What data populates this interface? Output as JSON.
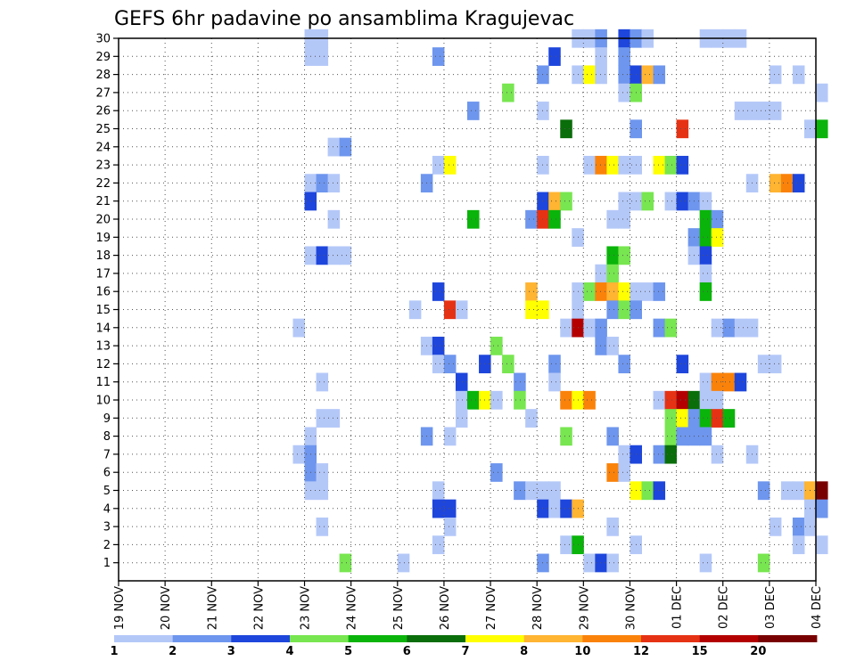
{
  "chart_data": {
    "type": "heatmap",
    "title": "GEFS 6hr padavine po ansamblima Kragujevac",
    "x_tick_labels": [
      "19 NOV",
      "20 NOV",
      "21 NOV",
      "22 NOV",
      "23 NOV",
      "24 NOV",
      "25 NOV",
      "26 NOV",
      "27 NOV",
      "28 NOV",
      "29 NOV",
      "30 NOV",
      "01 DEC",
      "02 DEC",
      "03 DEC",
      "04 DEC"
    ],
    "y_tick_labels": [
      "1",
      "2",
      "3",
      "4",
      "5",
      "6",
      "7",
      "8",
      "9",
      "10",
      "11",
      "12",
      "13",
      "14",
      "15",
      "16",
      "17",
      "18",
      "19",
      "20",
      "21",
      "22",
      "23",
      "24",
      "25",
      "26",
      "27",
      "28",
      "29",
      "30"
    ],
    "x_range": [
      "19 NOV",
      "04 DEC"
    ],
    "y_range": [
      0,
      30
    ],
    "time_step_hours": 6,
    "grid": "dotted",
    "legend": {
      "position": "bottom",
      "boundaries": [
        "1",
        "2",
        "3",
        "4",
        "5",
        "6",
        "7",
        "8",
        "10",
        "12",
        "15",
        "20"
      ],
      "colors": [
        "#b4c8f8",
        "#6e96ee",
        "#1e46dc",
        "#78e650",
        "#0ab40a",
        "#0a6e0a",
        "#ffff00",
        "#ffb432",
        "#fa820a",
        "#e63214",
        "#b40000",
        "#780000"
      ]
    },
    "cells": [
      [
        "23 NOV 00Z",
        30,
        1
      ],
      [
        "23 NOV 06Z",
        30,
        1
      ],
      [
        "28 NOV 18Z",
        30,
        1
      ],
      [
        "29 NOV 00Z",
        30,
        1
      ],
      [
        "29 NOV 06Z",
        30,
        2
      ],
      [
        "29 NOV 18Z",
        30,
        3
      ],
      [
        "30 NOV 00Z",
        30,
        2
      ],
      [
        "30 NOV 06Z",
        30,
        1
      ],
      [
        "01 DEC 12Z",
        30,
        1
      ],
      [
        "01 DEC 18Z",
        30,
        1
      ],
      [
        "02 DEC 00Z",
        30,
        1
      ],
      [
        "02 DEC 06Z",
        30,
        1
      ],
      [
        "23 NOV 00Z",
        29,
        1
      ],
      [
        "23 NOV 06Z",
        29,
        1
      ],
      [
        "25 NOV 18Z",
        29,
        2
      ],
      [
        "28 NOV 06Z",
        29,
        3
      ],
      [
        "29 NOV 06Z",
        29,
        1
      ],
      [
        "29 NOV 18Z",
        29,
        2
      ],
      [
        "28 NOV 00Z",
        28,
        2
      ],
      [
        "28 NOV 18Z",
        28,
        1
      ],
      [
        "29 NOV 00Z",
        28,
        7
      ],
      [
        "29 NOV 06Z",
        28,
        1
      ],
      [
        "29 NOV 18Z",
        28,
        2
      ],
      [
        "30 NOV 00Z",
        28,
        3
      ],
      [
        "30 NOV 06Z",
        28,
        8
      ],
      [
        "30 NOV 12Z",
        28,
        2
      ],
      [
        "03 DEC 00Z",
        28,
        1
      ],
      [
        "03 DEC 12Z",
        28,
        1
      ],
      [
        "27 NOV 06Z",
        27,
        4
      ],
      [
        "29 NOV 18Z",
        27,
        1
      ],
      [
        "30 NOV 00Z",
        27,
        4
      ],
      [
        "04 DEC 00Z",
        27,
        1
      ],
      [
        "26 NOV 12Z",
        26,
        2
      ],
      [
        "28 NOV 00Z",
        26,
        1
      ],
      [
        "02 DEC 06Z",
        26,
        1
      ],
      [
        "02 DEC 12Z",
        26,
        1
      ],
      [
        "02 DEC 18Z",
        26,
        1
      ],
      [
        "03 DEC 00Z",
        26,
        1
      ],
      [
        "28 NOV 12Z",
        25,
        6
      ],
      [
        "30 NOV 00Z",
        25,
        2
      ],
      [
        "01 DEC 00Z",
        25,
        10
      ],
      [
        "03 DEC 18Z",
        25,
        1
      ],
      [
        "04 DEC 00Z",
        25,
        5
      ],
      [
        "23 NOV 12Z",
        24,
        1
      ],
      [
        "23 NOV 18Z",
        24,
        2
      ],
      [
        "25 NOV 18Z",
        23,
        1
      ],
      [
        "26 NOV 00Z",
        23,
        7
      ],
      [
        "28 NOV 00Z",
        23,
        1
      ],
      [
        "29 NOV 00Z",
        23,
        1
      ],
      [
        "29 NOV 06Z",
        23,
        9
      ],
      [
        "29 NOV 12Z",
        23,
        7
      ],
      [
        "29 NOV 18Z",
        23,
        1
      ],
      [
        "30 NOV 00Z",
        23,
        1
      ],
      [
        "30 NOV 12Z",
        23,
        7
      ],
      [
        "30 NOV 18Z",
        23,
        4
      ],
      [
        "01 DEC 00Z",
        23,
        3
      ],
      [
        "23 NOV 00Z",
        22,
        1
      ],
      [
        "23 NOV 06Z",
        22,
        2
      ],
      [
        "23 NOV 12Z",
        22,
        1
      ],
      [
        "25 NOV 12Z",
        22,
        2
      ],
      [
        "02 DEC 12Z",
        22,
        1
      ],
      [
        "03 DEC 00Z",
        22,
        8
      ],
      [
        "03 DEC 06Z",
        22,
        9
      ],
      [
        "03 DEC 12Z",
        22,
        3
      ],
      [
        "23 NOV 00Z",
        21,
        3
      ],
      [
        "28 NOV 00Z",
        21,
        3
      ],
      [
        "28 NOV 06Z",
        21,
        8
      ],
      [
        "28 NOV 12Z",
        21,
        4
      ],
      [
        "29 NOV 18Z",
        21,
        1
      ],
      [
        "30 NOV 00Z",
        21,
        1
      ],
      [
        "30 NOV 06Z",
        21,
        4
      ],
      [
        "30 NOV 18Z",
        21,
        1
      ],
      [
        "01 DEC 00Z",
        21,
        3
      ],
      [
        "01 DEC 06Z",
        21,
        2
      ],
      [
        "01 DEC 12Z",
        21,
        1
      ],
      [
        "23 NOV 12Z",
        20,
        1
      ],
      [
        "26 NOV 12Z",
        20,
        5
      ],
      [
        "27 NOV 18Z",
        20,
        2
      ],
      [
        "28 NOV 00Z",
        20,
        10
      ],
      [
        "28 NOV 06Z",
        20,
        5
      ],
      [
        "29 NOV 12Z",
        20,
        1
      ],
      [
        "29 NOV 18Z",
        20,
        1
      ],
      [
        "01 DEC 12Z",
        20,
        5
      ],
      [
        "01 DEC 18Z",
        20,
        2
      ],
      [
        "28 NOV 18Z",
        19,
        1
      ],
      [
        "01 DEC 06Z",
        19,
        2
      ],
      [
        "01 DEC 12Z",
        19,
        5
      ],
      [
        "01 DEC 18Z",
        19,
        7
      ],
      [
        "23 NOV 00Z",
        18,
        1
      ],
      [
        "23 NOV 06Z",
        18,
        3
      ],
      [
        "23 NOV 12Z",
        18,
        1
      ],
      [
        "23 NOV 18Z",
        18,
        1
      ],
      [
        "29 NOV 12Z",
        18,
        5
      ],
      [
        "29 NOV 18Z",
        18,
        4
      ],
      [
        "01 DEC 06Z",
        18,
        1
      ],
      [
        "01 DEC 12Z",
        18,
        3
      ],
      [
        "29 NOV 06Z",
        17,
        1
      ],
      [
        "29 NOV 12Z",
        17,
        4
      ],
      [
        "01 DEC 12Z",
        17,
        1
      ],
      [
        "25 NOV 18Z",
        16,
        3
      ],
      [
        "27 NOV 18Z",
        16,
        8
      ],
      [
        "28 NOV 18Z",
        16,
        1
      ],
      [
        "29 NOV 00Z",
        16,
        4
      ],
      [
        "29 NOV 06Z",
        16,
        9
      ],
      [
        "29 NOV 12Z",
        16,
        8
      ],
      [
        "29 NOV 18Z",
        16,
        7
      ],
      [
        "30 NOV 00Z",
        16,
        1
      ],
      [
        "30 NOV 06Z",
        16,
        1
      ],
      [
        "30 NOV 12Z",
        16,
        2
      ],
      [
        "01 DEC 12Z",
        16,
        5
      ],
      [
        "25 NOV 06Z",
        15,
        1
      ],
      [
        "26 NOV 00Z",
        15,
        10
      ],
      [
        "26 NOV 06Z",
        15,
        1
      ],
      [
        "27 NOV 18Z",
        15,
        7
      ],
      [
        "28 NOV 00Z",
        15,
        7
      ],
      [
        "28 NOV 18Z",
        15,
        1
      ],
      [
        "29 NOV 12Z",
        15,
        2
      ],
      [
        "29 NOV 18Z",
        15,
        4
      ],
      [
        "30 NOV 00Z",
        15,
        2
      ],
      [
        "22 NOV 18Z",
        14,
        1
      ],
      [
        "28 NOV 12Z",
        14,
        1
      ],
      [
        "28 NOV 18Z",
        14,
        11
      ],
      [
        "29 NOV 00Z",
        14,
        1
      ],
      [
        "29 NOV 06Z",
        14,
        2
      ],
      [
        "30 NOV 12Z",
        14,
        2
      ],
      [
        "30 NOV 18Z",
        14,
        4
      ],
      [
        "01 DEC 18Z",
        14,
        1
      ],
      [
        "02 DEC 00Z",
        14,
        2
      ],
      [
        "02 DEC 06Z",
        14,
        1
      ],
      [
        "02 DEC 12Z",
        14,
        1
      ],
      [
        "25 NOV 12Z",
        13,
        1
      ],
      [
        "25 NOV 18Z",
        13,
        3
      ],
      [
        "27 NOV 00Z",
        13,
        4
      ],
      [
        "29 NOV 06Z",
        13,
        2
      ],
      [
        "29 NOV 12Z",
        13,
        1
      ],
      [
        "25 NOV 18Z",
        12,
        1
      ],
      [
        "26 NOV 00Z",
        12,
        2
      ],
      [
        "26 NOV 18Z",
        12,
        3
      ],
      [
        "27 NOV 06Z",
        12,
        4
      ],
      [
        "28 NOV 06Z",
        12,
        2
      ],
      [
        "29 NOV 18Z",
        12,
        2
      ],
      [
        "01 DEC 00Z",
        12,
        3
      ],
      [
        "02 DEC 18Z",
        12,
        1
      ],
      [
        "03 DEC 00Z",
        12,
        1
      ],
      [
        "23 NOV 06Z",
        11,
        1
      ],
      [
        "26 NOV 06Z",
        11,
        3
      ],
      [
        "27 NOV 12Z",
        11,
        2
      ],
      [
        "28 NOV 06Z",
        11,
        1
      ],
      [
        "01 DEC 12Z",
        11,
        1
      ],
      [
        "01 DEC 18Z",
        11,
        9
      ],
      [
        "02 DEC 00Z",
        11,
        9
      ],
      [
        "02 DEC 06Z",
        11,
        3
      ],
      [
        "26 NOV 06Z",
        10,
        1
      ],
      [
        "26 NOV 12Z",
        10,
        5
      ],
      [
        "26 NOV 18Z",
        10,
        7
      ],
      [
        "27 NOV 00Z",
        10,
        1
      ],
      [
        "27 NOV 12Z",
        10,
        4
      ],
      [
        "28 NOV 12Z",
        10,
        9
      ],
      [
        "28 NOV 18Z",
        10,
        7
      ],
      [
        "29 NOV 00Z",
        10,
        9
      ],
      [
        "30 NOV 12Z",
        10,
        1
      ],
      [
        "30 NOV 18Z",
        10,
        10
      ],
      [
        "01 DEC 00Z",
        10,
        11
      ],
      [
        "01 DEC 06Z",
        10,
        6
      ],
      [
        "01 DEC 12Z",
        10,
        1
      ],
      [
        "01 DEC 18Z",
        10,
        1
      ],
      [
        "23 NOV 06Z",
        9,
        1
      ],
      [
        "23 NOV 12Z",
        9,
        1
      ],
      [
        "26 NOV 06Z",
        9,
        1
      ],
      [
        "27 NOV 18Z",
        9,
        1
      ],
      [
        "30 NOV 18Z",
        9,
        4
      ],
      [
        "01 DEC 00Z",
        9,
        7
      ],
      [
        "01 DEC 06Z",
        9,
        2
      ],
      [
        "01 DEC 12Z",
        9,
        5
      ],
      [
        "01 DEC 18Z",
        9,
        10
      ],
      [
        "02 DEC 00Z",
        9,
        5
      ],
      [
        "23 NOV 00Z",
        8,
        1
      ],
      [
        "25 NOV 12Z",
        8,
        2
      ],
      [
        "26 NOV 00Z",
        8,
        1
      ],
      [
        "28 NOV 12Z",
        8,
        4
      ],
      [
        "29 NOV 12Z",
        8,
        2
      ],
      [
        "30 NOV 18Z",
        8,
        4
      ],
      [
        "01 DEC 00Z",
        8,
        2
      ],
      [
        "01 DEC 06Z",
        8,
        2
      ],
      [
        "01 DEC 12Z",
        8,
        2
      ],
      [
        "22 NOV 18Z",
        7,
        1
      ],
      [
        "23 NOV 00Z",
        7,
        2
      ],
      [
        "29 NOV 18Z",
        7,
        1
      ],
      [
        "30 NOV 00Z",
        7,
        3
      ],
      [
        "30 NOV 12Z",
        7,
        2
      ],
      [
        "30 NOV 18Z",
        7,
        6
      ],
      [
        "01 DEC 18Z",
        7,
        1
      ],
      [
        "02 DEC 12Z",
        7,
        1
      ],
      [
        "23 NOV 00Z",
        6,
        2
      ],
      [
        "23 NOV 06Z",
        6,
        1
      ],
      [
        "27 NOV 00Z",
        6,
        2
      ],
      [
        "29 NOV 12Z",
        6,
        9
      ],
      [
        "29 NOV 18Z",
        6,
        1
      ],
      [
        "23 NOV 00Z",
        5,
        1
      ],
      [
        "23 NOV 06Z",
        5,
        1
      ],
      [
        "25 NOV 18Z",
        5,
        1
      ],
      [
        "27 NOV 12Z",
        5,
        2
      ],
      [
        "27 NOV 18Z",
        5,
        1
      ],
      [
        "28 NOV 00Z",
        5,
        1
      ],
      [
        "28 NOV 06Z",
        5,
        1
      ],
      [
        "30 NOV 00Z",
        5,
        7
      ],
      [
        "30 NOV 06Z",
        5,
        4
      ],
      [
        "30 NOV 12Z",
        5,
        3
      ],
      [
        "02 DEC 18Z",
        5,
        2
      ],
      [
        "03 DEC 06Z",
        5,
        1
      ],
      [
        "03 DEC 12Z",
        5,
        1
      ],
      [
        "03 DEC 18Z",
        5,
        8
      ],
      [
        "04 DEC 00Z",
        5,
        12
      ],
      [
        "25 NOV 18Z",
        4,
        3
      ],
      [
        "26 NOV 00Z",
        4,
        3
      ],
      [
        "28 NOV 00Z",
        4,
        3
      ],
      [
        "28 NOV 06Z",
        4,
        1
      ],
      [
        "28 NOV 12Z",
        4,
        3
      ],
      [
        "28 NOV 18Z",
        4,
        8
      ],
      [
        "03 DEC 18Z",
        4,
        1
      ],
      [
        "04 DEC 00Z",
        4,
        2
      ],
      [
        "23 NOV 06Z",
        3,
        1
      ],
      [
        "26 NOV 00Z",
        3,
        1
      ],
      [
        "29 NOV 12Z",
        3,
        1
      ],
      [
        "03 DEC 00Z",
        3,
        1
      ],
      [
        "03 DEC 12Z",
        3,
        2
      ],
      [
        "03 DEC 18Z",
        3,
        1
      ],
      [
        "25 NOV 18Z",
        2,
        1
      ],
      [
        "28 NOV 12Z",
        2,
        1
      ],
      [
        "28 NOV 18Z",
        2,
        5
      ],
      [
        "30 NOV 00Z",
        2,
        1
      ],
      [
        "03 DEC 12Z",
        2,
        1
      ],
      [
        "04 DEC 00Z",
        2,
        1
      ],
      [
        "23 NOV 18Z",
        1,
        4
      ],
      [
        "25 NOV 00Z",
        1,
        1
      ],
      [
        "28 NOV 00Z",
        1,
        2
      ],
      [
        "29 NOV 00Z",
        1,
        1
      ],
      [
        "29 NOV 06Z",
        1,
        3
      ],
      [
        "29 NOV 12Z",
        1,
        1
      ],
      [
        "01 DEC 12Z",
        1,
        1
      ],
      [
        "02 DEC 18Z",
        1,
        4
      ]
    ]
  }
}
